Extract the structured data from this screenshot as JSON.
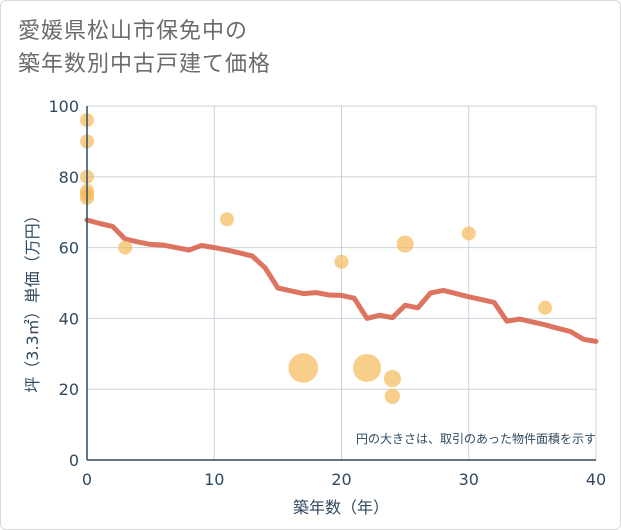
{
  "chart_data": {
    "type": "scatter",
    "title_lines": [
      "愛媛県松山市保免中の",
      "築年数別中古戸建て価格"
    ],
    "xlabel": "築年数（年）",
    "ylabel": "坪（3.3㎡）単価（万円）",
    "xlim": [
      0,
      40
    ],
    "ylim": [
      0,
      100
    ],
    "xticks": [
      0,
      10,
      20,
      30,
      40
    ],
    "yticks": [
      0,
      20,
      40,
      60,
      80,
      100
    ],
    "grid": true,
    "note": "円の大きさは、取引のあった物件面積を示す",
    "colors": {
      "bubble": "#f5b95a",
      "trend": "#d9654f",
      "grid": "#c9d3dd",
      "axis": "#2f4a60"
    },
    "bubbles": [
      {
        "x": 0,
        "y": 96,
        "size": 1
      },
      {
        "x": 0,
        "y": 90,
        "size": 1
      },
      {
        "x": 0,
        "y": 80,
        "size": 1
      },
      {
        "x": 0,
        "y": 76,
        "size": 1
      },
      {
        "x": 0,
        "y": 75,
        "size": 1
      },
      {
        "x": 0,
        "y": 74,
        "size": 1
      },
      {
        "x": 3,
        "y": 60,
        "size": 1
      },
      {
        "x": 11,
        "y": 68,
        "size": 1
      },
      {
        "x": 17,
        "y": 26,
        "size": 4.5
      },
      {
        "x": 20,
        "y": 56,
        "size": 1
      },
      {
        "x": 22,
        "y": 26,
        "size": 4
      },
      {
        "x": 24,
        "y": 23,
        "size": 1.5
      },
      {
        "x": 24,
        "y": 18,
        "size": 1.2
      },
      {
        "x": 25,
        "y": 61,
        "size": 1.5
      },
      {
        "x": 30,
        "y": 64,
        "size": 1
      },
      {
        "x": 36,
        "y": 43,
        "size": 1
      }
    ],
    "trend": {
      "x": [
        0,
        1,
        2,
        3,
        4,
        5,
        6,
        7,
        8,
        9,
        10,
        11,
        12,
        13,
        14,
        15,
        16,
        17,
        18,
        19,
        20,
        21,
        22,
        23,
        24,
        25,
        26,
        27,
        28,
        29,
        30,
        31,
        32,
        33,
        34,
        35,
        36,
        37,
        38,
        39,
        40
      ],
      "y": [
        67.8,
        66.8,
        66,
        62.4,
        61.6,
        60.9,
        60.7,
        60,
        59.3,
        60.6,
        60,
        59.3,
        58.5,
        57.6,
        54.3,
        48.6,
        47.8,
        47,
        47.3,
        46.6,
        46.5,
        45.7,
        40,
        40.9,
        40.2,
        43.7,
        43,
        47.2,
        47.9,
        47,
        46.1,
        45.3,
        44.5,
        39.2,
        39.8,
        39,
        38.2,
        37.2,
        36.3,
        34.1,
        33.5
      ]
    }
  }
}
